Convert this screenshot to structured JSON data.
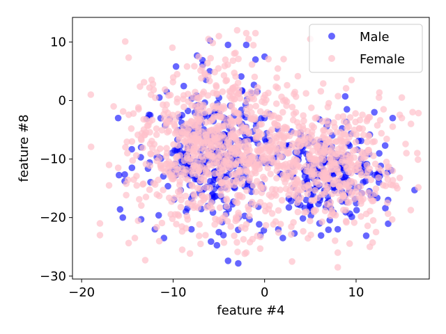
{
  "chart_data": {
    "type": "scatter",
    "xlabel": "feature #4",
    "ylabel": "feature #8",
    "xlim": [
      -21,
      18
    ],
    "ylim": [
      -30.5,
      14.2
    ],
    "xticks": [
      -20,
      -10,
      0,
      10
    ],
    "yticks": [
      10,
      0,
      -10,
      -20,
      -30
    ],
    "xtick_labels": [
      "−20",
      "−10",
      "0",
      "10"
    ],
    "ytick_labels": [
      "10",
      "0",
      "−10",
      "−20",
      "−30"
    ],
    "grid": false,
    "legend_position": "top-right",
    "series": [
      {
        "name": "Male",
        "color": "#0000ff",
        "opacity": 0.6,
        "clusters": [
          {
            "cx": -6,
            "cy": -9,
            "sx": 3.6,
            "sy": 6.2,
            "n": 340
          },
          {
            "cx": 7,
            "cy": -13,
            "sx": 2.8,
            "sy": 4.2,
            "n": 220
          }
        ],
        "points": [
          [
            -16.0,
            -3.0
          ],
          [
            -15.8,
            -18.6
          ],
          [
            -13.5,
            -20.3
          ],
          [
            -11.0,
            -23.5
          ],
          [
            -12.0,
            -22.0
          ],
          [
            -4.0,
            9.5
          ],
          [
            -2.0,
            9.5
          ],
          [
            -6.0,
            5.0
          ],
          [
            -5.0,
            -22.5
          ],
          [
            -4.5,
            -23.0
          ],
          [
            -8.0,
            -22.0
          ],
          [
            2.0,
            -23.5
          ],
          [
            1.5,
            -22.0
          ],
          [
            6.0,
            -21.0
          ],
          [
            8.0,
            -22.0
          ],
          [
            12.5,
            -14.0
          ],
          [
            13.2,
            -18.4
          ],
          [
            13.5,
            -17.0
          ],
          [
            14.0,
            -3.0
          ],
          [
            12.0,
            -2.0
          ],
          [
            9.0,
            -1.5
          ],
          [
            11.0,
            -9.0
          ],
          [
            12.5,
            -12.5
          ],
          [
            0.0,
            7.5
          ],
          [
            -1.0,
            7.0
          ],
          [
            -11.5,
            0.5
          ],
          [
            -12.5,
            -2.5
          ],
          [
            -13.5,
            -8.0
          ],
          [
            -14.5,
            -11.5
          ],
          [
            -15.5,
            -20.0
          ]
        ]
      },
      {
        "name": "Female",
        "color": "#ffc0cb",
        "opacity": 0.7,
        "clusters": [
          {
            "cx": -5,
            "cy": -8,
            "sx": 4.6,
            "sy": 7.0,
            "n": 800
          },
          {
            "cx": 7,
            "cy": -11,
            "sx": 3.6,
            "sy": 5.0,
            "n": 420
          }
        ],
        "points": [
          [
            -19.0,
            1.0
          ],
          [
            -18.0,
            -21.0
          ],
          [
            -18.0,
            -23.0
          ],
          [
            -17.0,
            -14.5
          ],
          [
            -16.5,
            -1.0
          ],
          [
            -17.0,
            -11.0
          ],
          [
            -9.0,
            -25.5
          ],
          [
            -7.0,
            -24.5
          ],
          [
            3.0,
            -27.5
          ],
          [
            8.0,
            -28.5
          ],
          [
            8.0,
            -26.0
          ],
          [
            15.0,
            -3.0
          ],
          [
            16.0,
            -4.0
          ],
          [
            15.0,
            0.5
          ],
          [
            13.0,
            -1.5
          ],
          [
            12.5,
            0.5
          ],
          [
            9.5,
            3.5
          ],
          [
            5.0,
            10.5
          ],
          [
            -2.0,
            11.5
          ],
          [
            -3.0,
            12.0
          ],
          [
            -5.0,
            11.0
          ],
          [
            -1.0,
            11.5
          ],
          [
            -15.0,
            -9.0
          ],
          [
            -14.5,
            -7.0
          ],
          [
            -16.0,
            -11.5
          ],
          [
            14.5,
            -15.0
          ],
          [
            15.5,
            -9.0
          ],
          [
            14.0,
            -12.0
          ],
          [
            11.5,
            -25.0
          ],
          [
            -2.0,
            -26.0
          ]
        ]
      }
    ]
  }
}
